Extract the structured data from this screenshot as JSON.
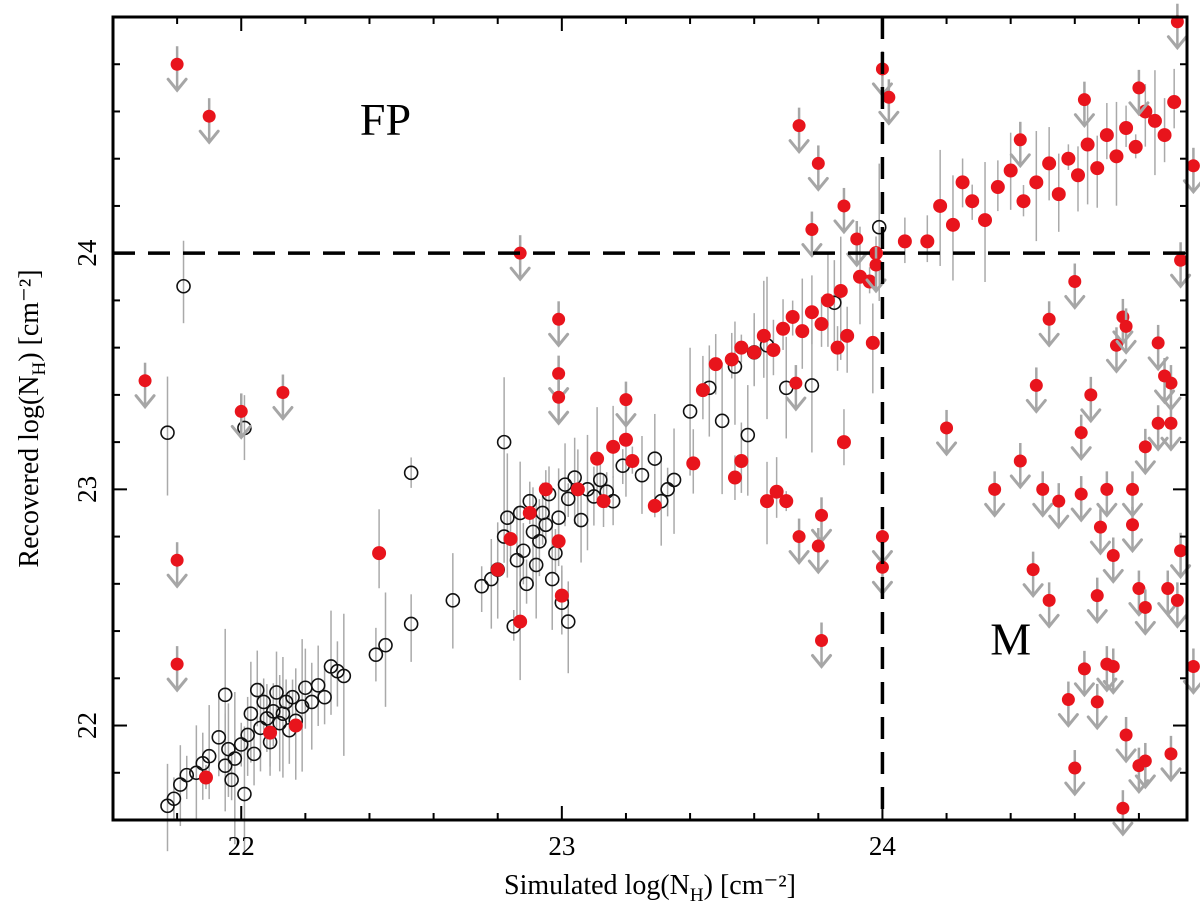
{
  "chart_data": {
    "type": "scatter",
    "xlabel": "Simulated log(N_H) [cm⁻²]",
    "ylabel": "Recovered log(N_H) [cm⁻²]",
    "xlabel_parts": {
      "prefix": "Simulated log(N",
      "subscript": "H",
      "suffix": ") [cm⁻²]"
    },
    "ylabel_parts": {
      "prefix": "Recovered log(N",
      "subscript": "H",
      "suffix": ") [cm⁻²]"
    },
    "xlim": [
      21.6,
      24.95
    ],
    "ylim": [
      21.6,
      25.0
    ],
    "x_ticks": [
      22,
      23,
      24
    ],
    "y_ticks": [
      22,
      23,
      24
    ],
    "grid": false,
    "legend": "none",
    "reference_lines": [
      {
        "orientation": "horizontal",
        "value": 24,
        "style": "dashed"
      },
      {
        "orientation": "vertical",
        "value": 24,
        "style": "dashed"
      }
    ],
    "annotations": [
      {
        "text": "FP",
        "x": 22.45,
        "y": 24.5
      },
      {
        "text": "M",
        "x": 24.4,
        "y": 22.3
      }
    ],
    "colors": {
      "detection": "#e8141c",
      "open": "#111111",
      "errorbar": "#aaaaaa",
      "limit_arrow": "#a6a6a6"
    },
    "series": [
      {
        "kind": "open-circle",
        "points": [
          [
            21.77,
            21.66
          ],
          [
            21.79,
            21.69
          ],
          [
            21.81,
            21.75
          ],
          [
            21.83,
            21.79
          ],
          [
            21.86,
            21.8
          ],
          [
            21.88,
            21.84
          ],
          [
            21.9,
            21.87
          ],
          [
            21.93,
            21.95
          ],
          [
            21.95,
            21.83
          ],
          [
            21.96,
            21.9
          ],
          [
            21.97,
            21.77
          ],
          [
            21.98,
            21.86
          ],
          [
            22.0,
            21.92
          ],
          [
            22.01,
            21.71
          ],
          [
            22.02,
            21.96
          ],
          [
            22.03,
            22.05
          ],
          [
            22.04,
            21.88
          ],
          [
            22.05,
            22.15
          ],
          [
            22.06,
            21.99
          ],
          [
            22.07,
            22.1
          ],
          [
            22.08,
            22.03
          ],
          [
            22.09,
            21.93
          ],
          [
            22.1,
            22.06
          ],
          [
            22.11,
            22.14
          ],
          [
            22.12,
            22.01
          ],
          [
            22.13,
            22.05
          ],
          [
            22.14,
            22.1
          ],
          [
            22.15,
            21.98
          ],
          [
            22.16,
            22.12
          ],
          [
            22.17,
            22.02
          ],
          [
            22.19,
            22.08
          ],
          [
            22.2,
            22.16
          ],
          [
            22.22,
            22.1
          ],
          [
            22.24,
            22.17
          ],
          [
            22.26,
            22.12
          ],
          [
            22.28,
            22.25
          ],
          [
            22.3,
            22.23
          ],
          [
            22.32,
            22.21
          ],
          [
            21.95,
            22.13
          ],
          [
            21.77,
            23.24
          ],
          [
            21.82,
            23.86
          ],
          [
            22.01,
            23.26
          ],
          [
            22.42,
            22.3
          ],
          [
            22.45,
            22.34
          ],
          [
            22.53,
            22.43
          ],
          [
            22.53,
            23.07
          ],
          [
            22.66,
            22.53
          ],
          [
            22.75,
            22.59
          ],
          [
            22.78,
            22.62
          ],
          [
            22.8,
            22.66
          ],
          [
            22.82,
            22.8
          ],
          [
            22.83,
            22.88
          ],
          [
            22.85,
            22.42
          ],
          [
            22.86,
            22.7
          ],
          [
            22.87,
            22.9
          ],
          [
            22.88,
            22.74
          ],
          [
            22.89,
            22.6
          ],
          [
            22.9,
            22.95
          ],
          [
            22.91,
            22.82
          ],
          [
            22.92,
            22.68
          ],
          [
            22.93,
            22.78
          ],
          [
            22.94,
            22.9
          ],
          [
            22.95,
            22.85
          ],
          [
            22.96,
            22.98
          ],
          [
            22.97,
            22.62
          ],
          [
            22.98,
            22.73
          ],
          [
            22.99,
            22.88
          ],
          [
            23.0,
            22.52
          ],
          [
            23.01,
            23.02
          ],
          [
            23.02,
            22.96
          ],
          [
            23.04,
            23.05
          ],
          [
            23.06,
            22.87
          ],
          [
            23.08,
            23.0
          ],
          [
            23.1,
            22.97
          ],
          [
            23.12,
            23.04
          ],
          [
            23.14,
            22.99
          ],
          [
            23.16,
            22.95
          ],
          [
            23.19,
            23.1
          ],
          [
            23.25,
            23.06
          ],
          [
            23.29,
            23.13
          ],
          [
            23.31,
            22.95
          ],
          [
            23.33,
            23.0
          ],
          [
            23.35,
            23.04
          ],
          [
            22.82,
            23.2
          ],
          [
            23.02,
            22.44
          ],
          [
            23.4,
            23.33
          ],
          [
            23.46,
            23.43
          ],
          [
            23.5,
            23.29
          ],
          [
            23.54,
            23.52
          ],
          [
            23.58,
            23.23
          ],
          [
            23.6,
            23.58
          ],
          [
            23.64,
            23.61
          ],
          [
            23.7,
            23.43
          ],
          [
            23.78,
            23.44
          ],
          [
            23.85,
            23.79
          ],
          [
            23.99,
            24.11
          ]
        ]
      },
      {
        "kind": "filled-detection",
        "points": [
          [
            21.89,
            21.78
          ],
          [
            22.09,
            21.97
          ],
          [
            22.17,
            22.0
          ],
          [
            22.43,
            22.73
          ],
          [
            22.8,
            22.66
          ],
          [
            22.84,
            22.79
          ],
          [
            22.87,
            22.44
          ],
          [
            22.9,
            22.9
          ],
          [
            22.95,
            23.0
          ],
          [
            22.99,
            22.78
          ],
          [
            23.0,
            22.55
          ],
          [
            23.05,
            23.0
          ],
          [
            23.11,
            23.13
          ],
          [
            23.13,
            22.95
          ],
          [
            23.2,
            23.21
          ],
          [
            23.29,
            22.93
          ],
          [
            23.44,
            23.42
          ],
          [
            23.48,
            23.53
          ],
          [
            23.53,
            23.55
          ],
          [
            23.56,
            23.6
          ],
          [
            23.6,
            23.58
          ],
          [
            23.63,
            23.65
          ],
          [
            23.66,
            23.59
          ],
          [
            23.69,
            23.68
          ],
          [
            23.72,
            23.73
          ],
          [
            23.75,
            23.67
          ],
          [
            23.78,
            23.75
          ],
          [
            23.81,
            23.7
          ],
          [
            23.83,
            23.8
          ],
          [
            23.86,
            23.6
          ],
          [
            23.87,
            23.84
          ],
          [
            23.89,
            23.65
          ],
          [
            23.93,
            23.9
          ],
          [
            23.96,
            23.88
          ],
          [
            23.98,
            24.0
          ],
          [
            23.97,
            23.62
          ],
          [
            24.07,
            24.05
          ],
          [
            24.14,
            24.05
          ],
          [
            24.18,
            24.2
          ],
          [
            24.22,
            24.12
          ],
          [
            24.25,
            24.3
          ],
          [
            24.28,
            24.22
          ],
          [
            24.32,
            24.14
          ],
          [
            24.36,
            24.28
          ],
          [
            24.4,
            24.35
          ],
          [
            24.44,
            24.22
          ],
          [
            24.48,
            24.3
          ],
          [
            24.52,
            24.38
          ],
          [
            24.55,
            24.25
          ],
          [
            24.58,
            24.4
          ],
          [
            24.61,
            24.33
          ],
          [
            24.64,
            24.46
          ],
          [
            24.67,
            24.36
          ],
          [
            24.7,
            24.5
          ],
          [
            24.73,
            24.41
          ],
          [
            24.76,
            24.53
          ],
          [
            24.79,
            24.45
          ],
          [
            24.82,
            24.6
          ],
          [
            24.85,
            24.56
          ],
          [
            24.88,
            24.5
          ],
          [
            24.91,
            24.64
          ],
          [
            23.41,
            23.11
          ],
          [
            23.54,
            23.05
          ],
          [
            23.56,
            23.12
          ],
          [
            23.64,
            22.95
          ],
          [
            23.67,
            22.99
          ],
          [
            23.7,
            22.95
          ],
          [
            23.88,
            23.2
          ],
          [
            23.16,
            23.18
          ],
          [
            23.22,
            23.12
          ]
        ]
      },
      {
        "kind": "upper-limit",
        "points": [
          [
            21.8,
            24.8
          ],
          [
            21.9,
            24.58
          ],
          [
            21.7,
            23.46
          ],
          [
            22.0,
            23.33
          ],
          [
            22.13,
            23.41
          ],
          [
            21.8,
            22.7
          ],
          [
            21.8,
            22.26
          ],
          [
            22.87,
            24.0
          ],
          [
            22.99,
            23.72
          ],
          [
            22.99,
            23.49
          ],
          [
            22.99,
            23.39
          ],
          [
            23.2,
            23.38
          ],
          [
            23.74,
            24.54
          ],
          [
            23.8,
            24.38
          ],
          [
            23.78,
            24.1
          ],
          [
            23.88,
            24.2
          ],
          [
            23.73,
            23.45
          ],
          [
            23.74,
            22.8
          ],
          [
            23.81,
            22.89
          ],
          [
            23.8,
            22.76
          ],
          [
            23.81,
            22.36
          ],
          [
            23.92,
            24.06
          ],
          [
            24.0,
            24.78
          ],
          [
            24.02,
            24.66
          ],
          [
            23.98,
            23.95
          ],
          [
            24.0,
            22.8
          ],
          [
            24.0,
            22.67
          ],
          [
            24.43,
            24.48
          ],
          [
            24.63,
            24.65
          ],
          [
            24.8,
            24.7
          ],
          [
            24.92,
            24.98
          ],
          [
            24.97,
            24.37
          ],
          [
            24.93,
            23.97
          ],
          [
            24.6,
            23.88
          ],
          [
            24.2,
            23.26
          ],
          [
            24.35,
            23.0
          ],
          [
            24.43,
            23.12
          ],
          [
            24.5,
            23.0
          ],
          [
            24.55,
            22.95
          ],
          [
            24.65,
            23.4
          ],
          [
            24.7,
            23.0
          ],
          [
            24.62,
            22.98
          ],
          [
            24.68,
            22.84
          ],
          [
            24.52,
            23.72
          ],
          [
            24.75,
            23.73
          ],
          [
            24.73,
            23.61
          ],
          [
            24.78,
            23.0
          ],
          [
            24.86,
            23.62
          ],
          [
            24.9,
            23.45
          ],
          [
            24.9,
            23.28
          ],
          [
            24.48,
            23.44
          ],
          [
            24.62,
            23.24
          ],
          [
            24.76,
            23.69
          ],
          [
            24.82,
            23.18
          ],
          [
            24.86,
            23.28
          ],
          [
            24.88,
            23.48
          ],
          [
            24.47,
            22.66
          ],
          [
            24.52,
            22.53
          ],
          [
            24.67,
            22.55
          ],
          [
            24.72,
            22.72
          ],
          [
            24.78,
            22.85
          ],
          [
            24.8,
            22.58
          ],
          [
            24.82,
            22.5
          ],
          [
            24.89,
            22.58
          ],
          [
            24.92,
            22.53
          ],
          [
            24.93,
            22.74
          ],
          [
            24.58,
            22.11
          ],
          [
            24.63,
            22.24
          ],
          [
            24.67,
            22.1
          ],
          [
            24.7,
            22.26
          ],
          [
            24.72,
            22.25
          ],
          [
            24.76,
            21.96
          ],
          [
            24.8,
            21.83
          ],
          [
            24.82,
            21.85
          ],
          [
            24.9,
            21.88
          ],
          [
            24.6,
            21.82
          ],
          [
            24.75,
            21.65
          ],
          [
            24.97,
            22.25
          ]
        ]
      }
    ]
  }
}
